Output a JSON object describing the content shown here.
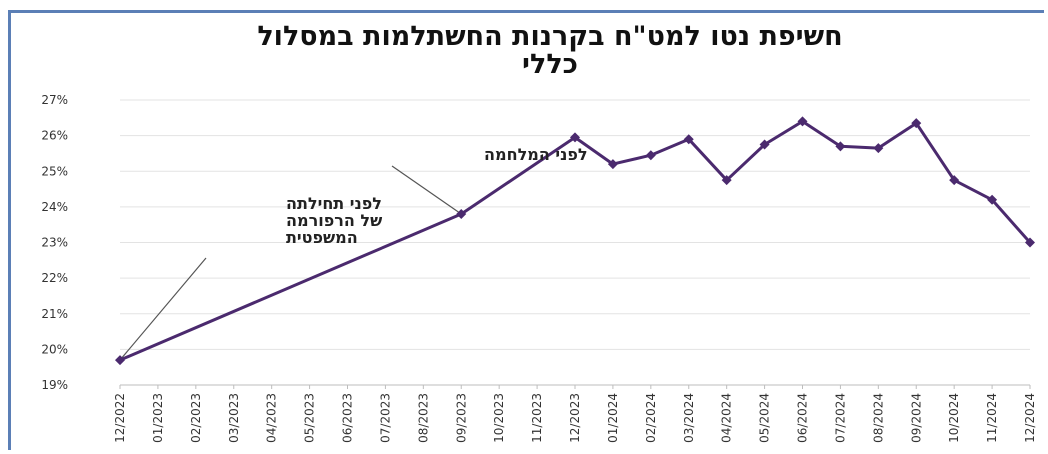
{
  "chart_data": {
    "type": "line",
    "title": "חשיפת נטו למט\"ח בקרנות החשתלמות במסלול כללי",
    "title_line1": "חשיפת נטו למט\"ח בקרנות החשתלמות במסלול",
    "title_line2": "כללי",
    "xlabel": "",
    "ylabel": "",
    "ylim": [
      19,
      27
    ],
    "yticks": [
      "19%",
      "20%",
      "21%",
      "22%",
      "23%",
      "24%",
      "25%",
      "26%",
      "27%"
    ],
    "categories": [
      "12/2022",
      "01/2023",
      "02/2023",
      "03/2023",
      "04/2023",
      "05/2023",
      "06/2023",
      "07/2023",
      "08/2023",
      "09/2023",
      "10/2023",
      "11/2023",
      "12/2023",
      "01/2024",
      "02/2024",
      "03/2024",
      "04/2024",
      "05/2024",
      "06/2024",
      "07/2024",
      "08/2024",
      "09/2024",
      "10/2024",
      "11/2024",
      "12/2024"
    ],
    "series": [
      {
        "name": "",
        "color": "#4b2a6e",
        "points": [
          {
            "x": "12/2022",
            "y": 19.7
          },
          {
            "x": "09/2023",
            "y": 23.8
          },
          {
            "x": "12/2023",
            "y": 25.95
          },
          {
            "x": "01/2024",
            "y": 25.2
          },
          {
            "x": "02/2024",
            "y": 25.45
          },
          {
            "x": "03/2024",
            "y": 25.9
          },
          {
            "x": "04/2024",
            "y": 24.75
          },
          {
            "x": "05/2024",
            "y": 25.75
          },
          {
            "x": "06/2024",
            "y": 26.4
          },
          {
            "x": "07/2024",
            "y": 25.7
          },
          {
            "x": "08/2024",
            "y": 25.65
          },
          {
            "x": "09/2024",
            "y": 26.35
          },
          {
            "x": "10/2024",
            "y": 24.75
          },
          {
            "x": "11/2024",
            "y": 24.2
          },
          {
            "x": "12/2024",
            "y": 23.0
          }
        ]
      }
    ],
    "annotations": [
      {
        "lines": [
          "לפני המלחמה"
        ],
        "x": "09/2023"
      },
      {
        "lines": [
          "לפני תחילתה",
          "של הרפורמה",
          "המשפטית"
        ],
        "x": "12/2022"
      }
    ],
    "grid": true,
    "legend": "none"
  }
}
